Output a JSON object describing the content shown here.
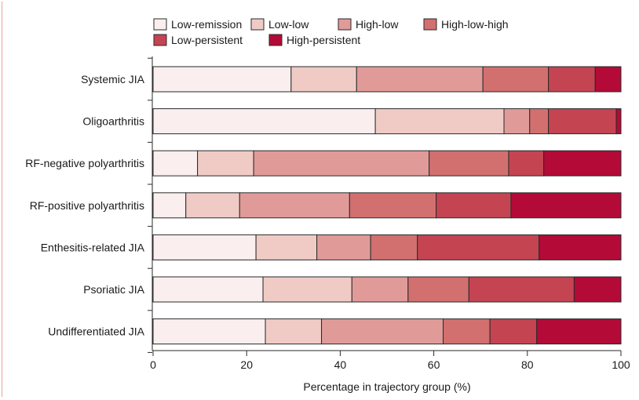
{
  "chart_data": {
    "type": "bar",
    "orientation": "horizontal",
    "stacked": true,
    "categories": [
      "Systemic JIA",
      "Oligoarthritis",
      "RF-negative polyarthritis",
      "RF-positive polyarthritis",
      "Enthesitis-related JIA",
      "Psoriatic JIA",
      "Undifferentiated JIA"
    ],
    "series": [
      {
        "name": "Low-remission",
        "color": "#fbeeee",
        "values": [
          29.5,
          47.5,
          9.5,
          7,
          22,
          23.5,
          24
        ]
      },
      {
        "name": "Low-low",
        "color": "#f0cbc5",
        "values": [
          14,
          27.5,
          12,
          11.5,
          13,
          19,
          12
        ]
      },
      {
        "name": "High-low",
        "color": "#e09b99",
        "values": [
          27,
          5.5,
          37.5,
          23.5,
          11.5,
          12,
          26
        ]
      },
      {
        "name": "High-low-high",
        "color": "#d2706f",
        "values": [
          14,
          4,
          17,
          18.5,
          10,
          13,
          10
        ]
      },
      {
        "name": "Low-persistent",
        "color": "#c44452",
        "values": [
          10,
          14.5,
          7.5,
          16,
          26,
          22.5,
          10
        ]
      },
      {
        "name": "High-persistent",
        "color": "#b40a37",
        "values": [
          5.5,
          1,
          16.5,
          23.5,
          17.5,
          10,
          18
        ]
      }
    ],
    "xlabel": "Percentage in trajectory group (%)",
    "ylabel": "",
    "xlim": [
      0,
      100
    ],
    "xticks": [
      "0",
      "20",
      "40",
      "60",
      "80",
      "100"
    ],
    "grid": false,
    "legend_position": "top"
  }
}
